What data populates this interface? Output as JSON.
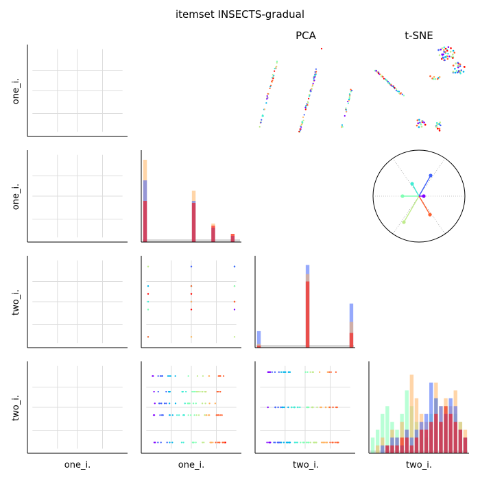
{
  "title": "itemset INSECTS-gradual",
  "panel_titles": {
    "pca": "PCA",
    "tsne": "t-SNE"
  },
  "variables": [
    "one_i.",
    "one_i.",
    "two_i.",
    "two_i."
  ],
  "row_labels": [
    "one_i.",
    "one_i.",
    "two_i.",
    "two_i."
  ],
  "col_labels": [
    "one_i.",
    "one_i.",
    "two_i.",
    "two_i."
  ],
  "palette": [
    "#8000ff",
    "#4062fa",
    "#00b5eb",
    "#40ecd4",
    "#80ffb4",
    "#c0eb8d",
    "#ffb360",
    "#ff6230",
    "#ff0000"
  ],
  "chart_data": [
    {
      "type": "bar",
      "panel": "diag-one_i.",
      "x": [
        0,
        1,
        2,
        3,
        4,
        5,
        6,
        7,
        8,
        9,
        10,
        11,
        12,
        13,
        14,
        15,
        16,
        17,
        18,
        19
      ],
      "series": [
        {
          "values": [
            40,
            0,
            0,
            0,
            0,
            0,
            0,
            0,
            0,
            0,
            25,
            0,
            0,
            0,
            9,
            0,
            0,
            0,
            4,
            0
          ],
          "color": "#ffb360"
        },
        {
          "values": [
            30,
            0,
            0,
            0,
            0,
            0,
            0,
            0,
            0,
            0,
            20,
            0,
            0,
            0,
            7,
            0,
            0,
            0,
            3,
            0
          ],
          "color": "#4062fa"
        },
        {
          "values": [
            20,
            0,
            0,
            0,
            0,
            0,
            0,
            0,
            0,
            0,
            19,
            0,
            0,
            0,
            8,
            0,
            0,
            0,
            4,
            0
          ],
          "color": "#ff0000"
        }
      ]
    },
    {
      "type": "bar",
      "panel": "diag-two_i.",
      "x": [
        0,
        1,
        2,
        3,
        4,
        5,
        6,
        7,
        8,
        9,
        10,
        11,
        12,
        13,
        14,
        15,
        16,
        17,
        18,
        19
      ],
      "series": [
        {
          "values": [
            9,
            0,
            0,
            0,
            0,
            0,
            0,
            0,
            0,
            0,
            45,
            0,
            0,
            0,
            0,
            0,
            0,
            0,
            0,
            24
          ],
          "color": "#4062fa"
        },
        {
          "values": [
            2,
            0,
            0,
            0,
            0,
            0,
            0,
            0,
            0,
            0,
            40,
            0,
            0,
            0,
            0,
            0,
            0,
            0,
            0,
            14
          ],
          "color": "#ffb360"
        },
        {
          "values": [
            1,
            0,
            0,
            0,
            0,
            0,
            0,
            0,
            0,
            0,
            36,
            0,
            0,
            0,
            0,
            0,
            0,
            0,
            0,
            8
          ],
          "color": "#ff0000"
        }
      ]
    },
    {
      "type": "bar",
      "panel": "diag-two_i.-b",
      "x": [
        0,
        1,
        2,
        3,
        4,
        5,
        6,
        7,
        8,
        9,
        10,
        11,
        12,
        13,
        14,
        15,
        16,
        17,
        18,
        19
      ],
      "series": [
        {
          "values": [
            2,
            3,
            5,
            6,
            4,
            3,
            5,
            8,
            6,
            4,
            3,
            2,
            5,
            7,
            4,
            6,
            3,
            5,
            4,
            2
          ],
          "color": "#80ffb4"
        },
        {
          "values": [
            0,
            1,
            2,
            1,
            3,
            2,
            4,
            3,
            10,
            7,
            5,
            4,
            3,
            9,
            6,
            7,
            6,
            8,
            4,
            3
          ],
          "color": "#ffb360"
        },
        {
          "values": [
            0,
            0,
            1,
            1,
            2,
            2,
            1,
            3,
            2,
            3,
            4,
            5,
            9,
            7,
            6,
            5,
            7,
            6,
            3,
            2
          ],
          "color": "#4062fa"
        },
        {
          "values": [
            0,
            0,
            0,
            1,
            1,
            1,
            2,
            2,
            1,
            2,
            3,
            3,
            4,
            5,
            4,
            6,
            5,
            4,
            3,
            2
          ],
          "color": "#ff0000"
        }
      ]
    },
    {
      "type": "scatter",
      "panel": "pca",
      "series": [
        {
          "name": "",
          "x": [
            0.0,
            0.3
          ],
          "y": [
            0.0,
            1.0
          ]
        }
      ]
    }
  ]
}
